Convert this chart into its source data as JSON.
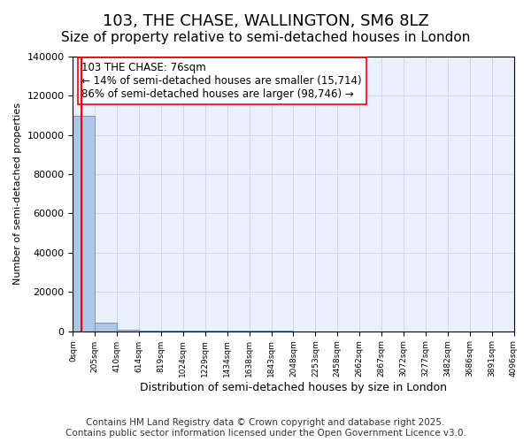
{
  "title": "103, THE CHASE, WALLINGTON, SM6 8LZ",
  "subtitle": "Size of property relative to semi-detached houses in London",
  "xlabel": "Distribution of semi-detached houses by size in London",
  "ylabel": "Number of semi-detached properties",
  "bar_heights": [
    110000,
    4200,
    800,
    400,
    250,
    150,
    100,
    80,
    60,
    50,
    40,
    35,
    30,
    25,
    20,
    18,
    15,
    12,
    10,
    8,
    5
  ],
  "bin_edges": [
    0,
    205,
    410,
    614,
    819,
    1024,
    1229,
    1434,
    1638,
    1843,
    2048,
    2253,
    2458,
    2662,
    2867,
    3072,
    3277,
    3482,
    3686,
    3891,
    4096,
    4301
  ],
  "xtick_positions": [
    0,
    205,
    410,
    614,
    819,
    1024,
    1229,
    1434,
    1638,
    1843,
    2048,
    2253,
    2458,
    2662,
    2867,
    3072,
    3277,
    3482,
    3686,
    3891,
    4096
  ],
  "xtick_labels": [
    "0sqm",
    "205sqm",
    "410sqm",
    "614sqm",
    "819sqm",
    "1024sqm",
    "1229sqm",
    "1434sqm",
    "1638sqm",
    "1843sqm",
    "2048sqm",
    "2253sqm",
    "2458sqm",
    "2662sqm",
    "2867sqm",
    "3072sqm",
    "3277sqm",
    "3482sqm",
    "3686sqm",
    "3891sqm",
    "4096sqm"
  ],
  "ylim": [
    0,
    140000
  ],
  "yticks": [
    0,
    20000,
    40000,
    60000,
    80000,
    100000,
    120000,
    140000
  ],
  "bar_color": "#aec6e8",
  "bar_edge_color": "#5b9bd5",
  "grid_color": "#d0d8e8",
  "background_color": "#eaf0fb",
  "red_line_x": 76,
  "annotation_text": "103 THE CHASE: 76sqm\n← 14% of semi-detached houses are smaller (15,714)\n86% of semi-detached houses are larger (98,746) →",
  "footer_text": "Contains HM Land Registry data © Crown copyright and database right 2025.\nContains public sector information licensed under the Open Government Licence v3.0.",
  "title_fontsize": 13,
  "subtitle_fontsize": 11,
  "annotation_fontsize": 8.5,
  "footer_fontsize": 7.5
}
